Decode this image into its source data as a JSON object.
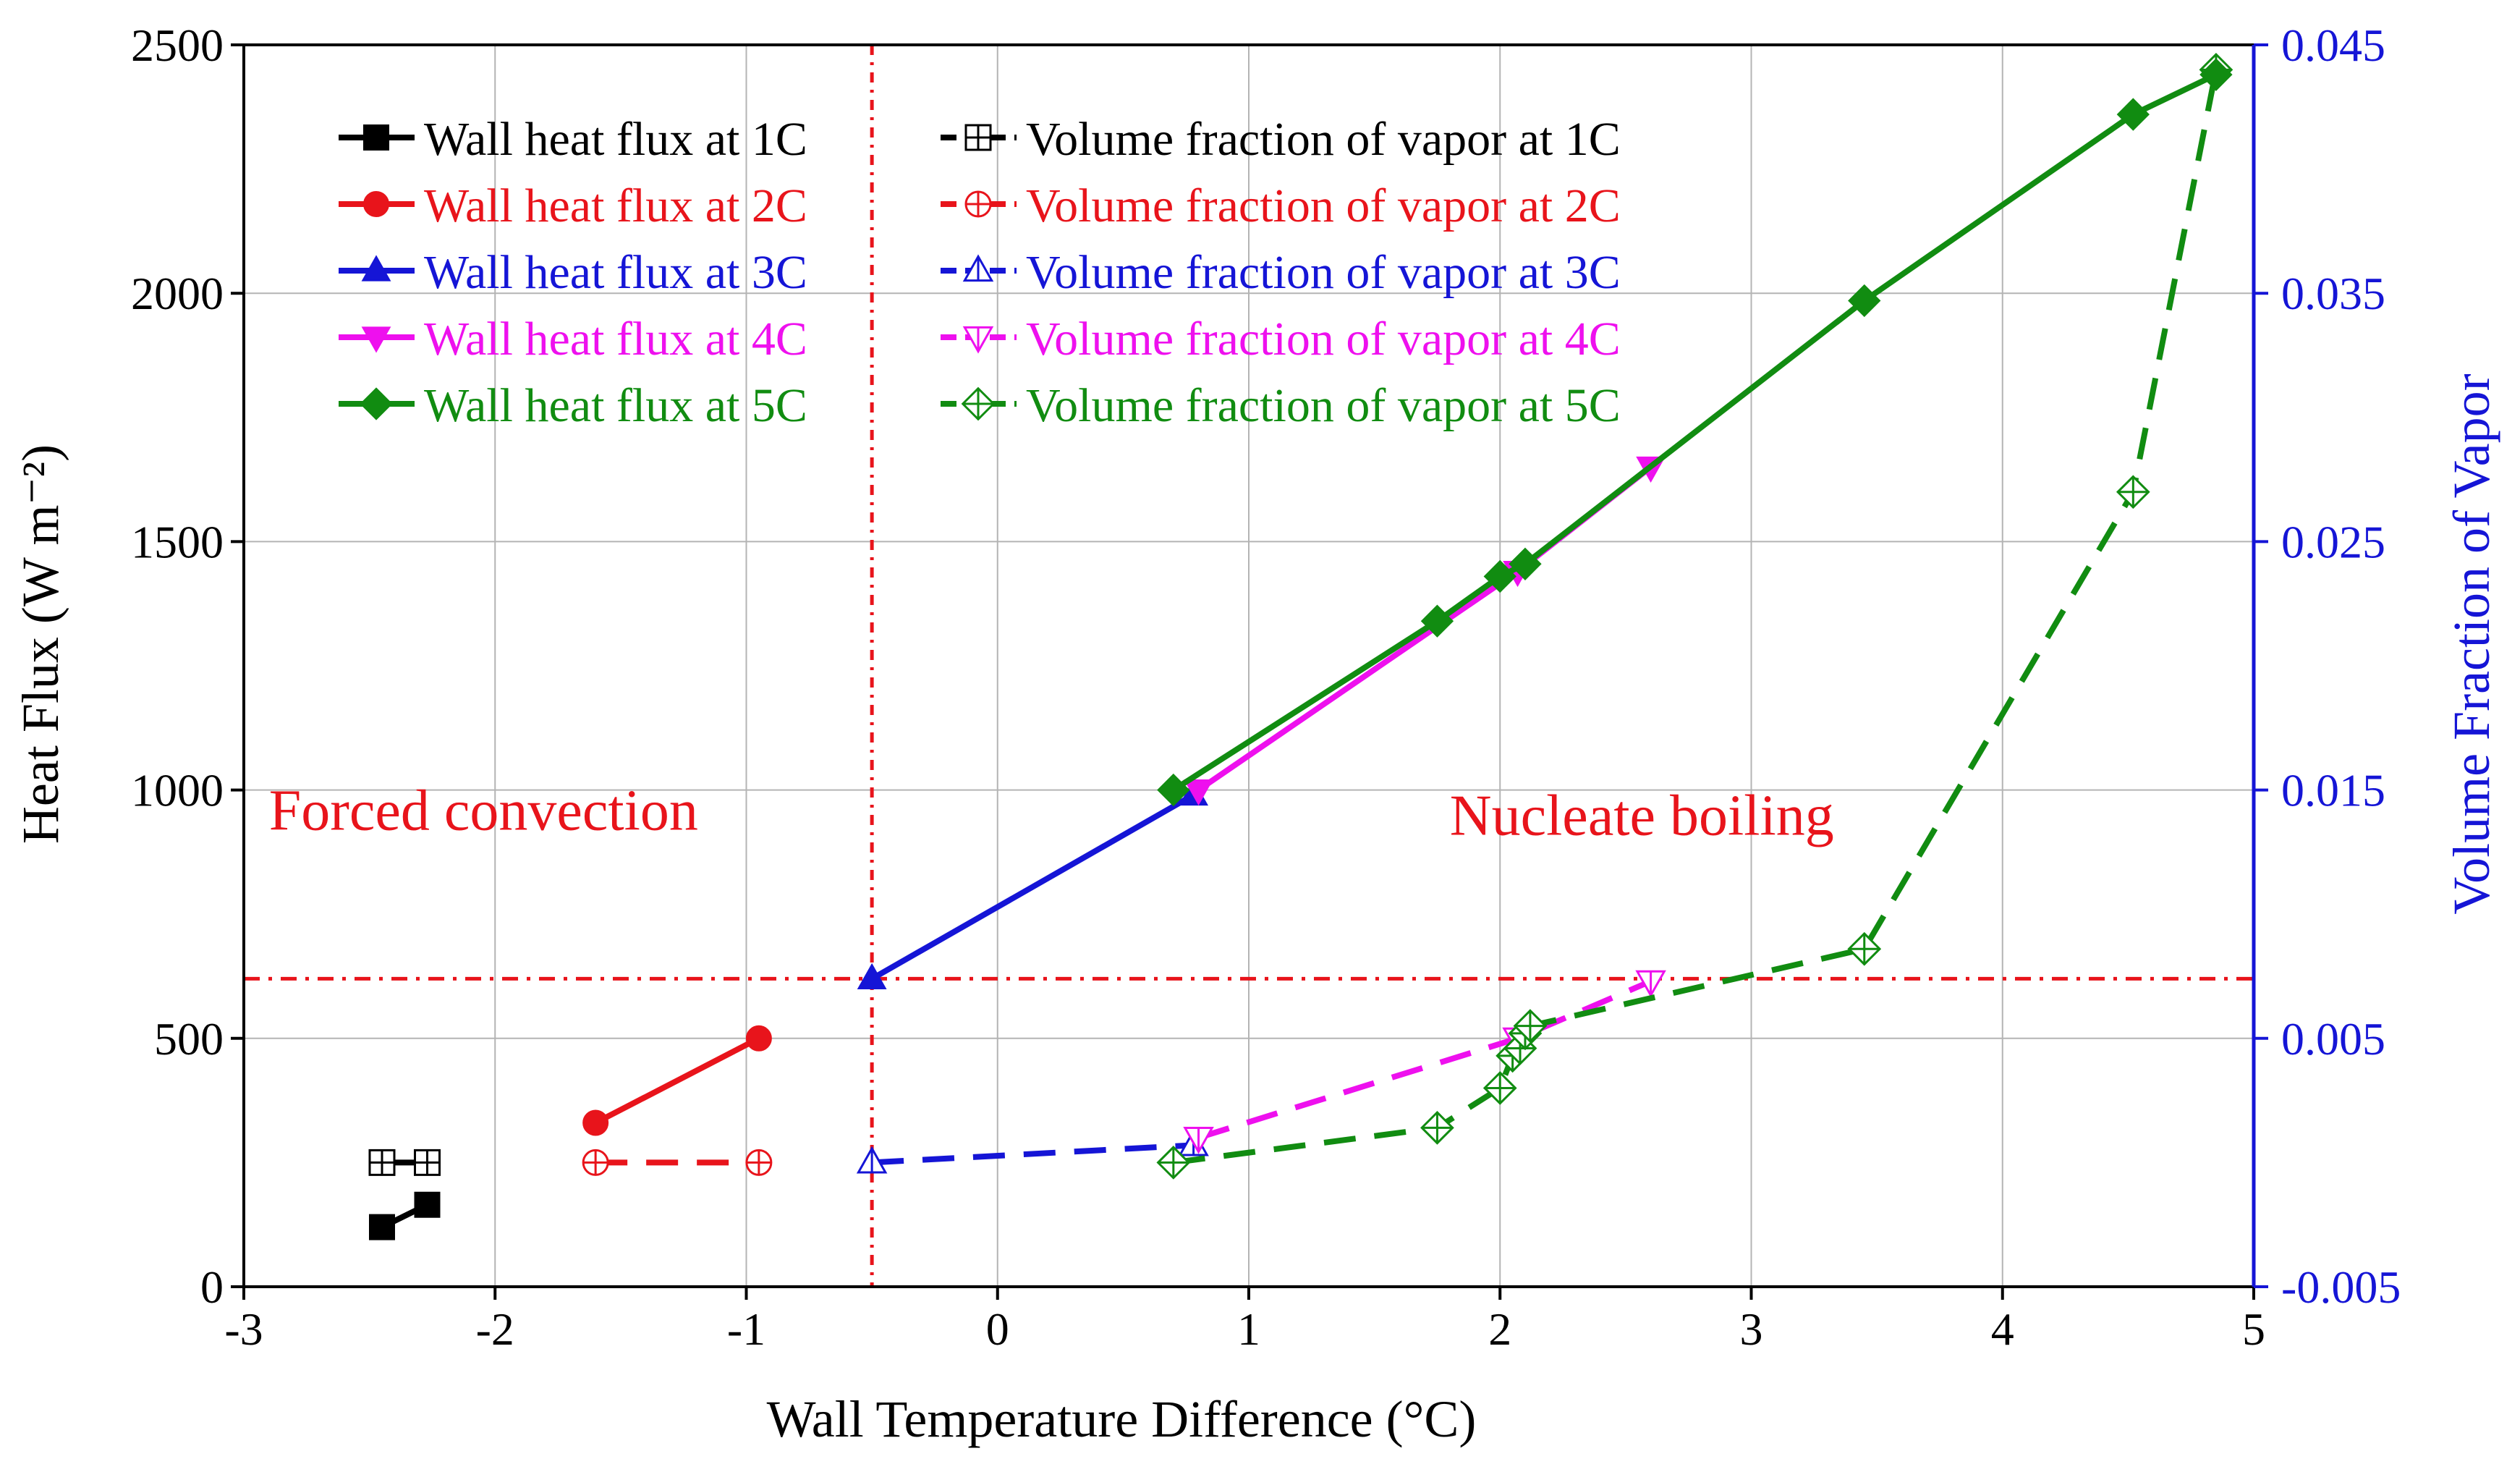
{
  "chart_data": {
    "type": "line",
    "title": "",
    "xlabel": "Wall Temperature Difference (°C)",
    "ylabel_left": "Heat Flux (W m⁻²)",
    "ylabel_right": "Volume Fraction of Vapor",
    "xlim": [
      -3,
      5
    ],
    "ylim_left": [
      0,
      2500
    ],
    "ylim_right": [
      -0.005,
      0.045
    ],
    "x_ticks": [
      "-3",
      "-2",
      "-1",
      "0",
      "1",
      "2",
      "3",
      "4",
      "5"
    ],
    "y_left_ticks": [
      "0",
      "500",
      "1000",
      "1500",
      "2000",
      "2500"
    ],
    "y_right_ticks": [
      "-0.005",
      "0.005",
      "0.015",
      "0.025",
      "0.035",
      "0.045"
    ],
    "grid": true,
    "legend_placement": "top-left",
    "colors": {
      "1C": "#000000",
      "2C": "#e8141b",
      "3C": "#1515d6",
      "4C": "#ee10ee",
      "5C": "#118c11",
      "right_axis": "#1515d6",
      "reference_lines": "#e8141b"
    },
    "reference_lines": {
      "vertical_x": -0.5,
      "horizontal_y": 620
    },
    "annotations": [
      {
        "text": "Forced convection",
        "x": -2.9,
        "y": 920
      },
      {
        "text": "Nucleate boiling",
        "x": 1.8,
        "y": 910
      }
    ],
    "series": [
      {
        "name": "Wall heat flux at 1C",
        "axis": "left",
        "marker": "square",
        "style": "solid",
        "key": "1C",
        "x": [
          -2.45,
          -2.27
        ],
        "y": [
          120,
          165
        ]
      },
      {
        "name": "Wall heat flux at 2C",
        "axis": "left",
        "marker": "circle",
        "style": "solid",
        "key": "2C",
        "x": [
          -1.6,
          -0.95
        ],
        "y": [
          330,
          500
        ]
      },
      {
        "name": "Wall heat flux at 3C",
        "axis": "left",
        "marker": "triangle-up",
        "style": "solid",
        "key": "3C",
        "x": [
          -0.5,
          0.78
        ],
        "y": [
          620,
          990
        ]
      },
      {
        "name": "Wall heat flux at 4C",
        "axis": "left",
        "marker": "triangle-down",
        "style": "solid",
        "key": "4C",
        "x": [
          0.8,
          2.07,
          2.6
        ],
        "y": [
          1000,
          1440,
          1650
        ]
      },
      {
        "name": "Wall heat flux at 5C",
        "axis": "left",
        "marker": "diamond",
        "style": "solid",
        "key": "5C",
        "x": [
          0.7,
          1.75,
          2.0,
          2.1,
          3.45,
          4.52,
          4.85
        ],
        "y": [
          1000,
          1340,
          1430,
          1455,
          1985,
          2360,
          2440
        ]
      },
      {
        "name": "Volume fraction of vapor at 1C",
        "axis": "right",
        "marker": "square-open",
        "style": "dashed",
        "key": "1C",
        "x": [
          -2.45,
          -2.27
        ],
        "y": [
          0.0,
          0.0
        ]
      },
      {
        "name": "Volume fraction of vapor at 2C",
        "axis": "right",
        "marker": "circle-open",
        "style": "dashed",
        "key": "2C",
        "x": [
          -1.6,
          -0.95
        ],
        "y": [
          0.0,
          0.0
        ]
      },
      {
        "name": "Volume fraction of vapor at 3C",
        "axis": "right",
        "marker": "triangle-up-open",
        "style": "dashed",
        "key": "3C",
        "x": [
          -0.5,
          0.78
        ],
        "y": [
          0.0,
          0.0007
        ]
      },
      {
        "name": "Volume fraction of vapor at 4C",
        "axis": "right",
        "marker": "triangle-down-open",
        "style": "dashed",
        "key": "4C",
        "x": [
          0.8,
          2.07,
          2.6
        ],
        "y": [
          0.001,
          0.005,
          0.0073
        ]
      },
      {
        "name": "Volume fraction of vapor at 5C",
        "axis": "right",
        "marker": "diamond-open",
        "style": "dashed",
        "key": "5C",
        "x": [
          0.7,
          1.75,
          2.0,
          2.05,
          2.08,
          2.1,
          2.12,
          3.45,
          4.52,
          4.85
        ],
        "y": [
          0.0,
          0.0014,
          0.003,
          0.0043,
          0.0046,
          0.0052,
          0.0055,
          0.0086,
          0.027,
          0.044
        ]
      }
    ]
  }
}
